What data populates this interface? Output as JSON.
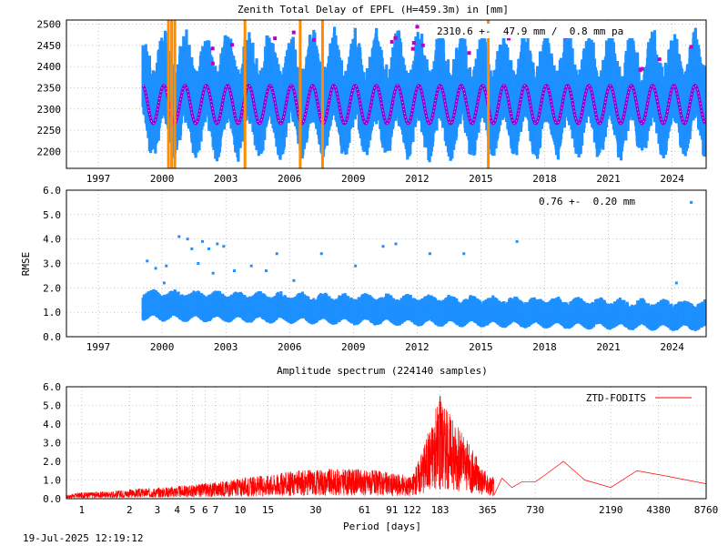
{
  "footer": {
    "timestamp": "19-Jul-2025 12:19:12"
  },
  "colors": {
    "ztd": "#1e90ff",
    "model": "#9400d3",
    "model_dots": "#c000c0",
    "events": "#ff8c00",
    "spectrum": "#ff0000",
    "grid": "#a0a0a0"
  },
  "chart_data": [
    {
      "type": "scatter",
      "title": "Zenith Total Delay of EPFL (H=459.3m) in [mm]",
      "annotation": "2310.6 +-  47.9 mm /  0.8 mm pa",
      "xlabel": "",
      "ylabel": "",
      "xlim": [
        1995.5,
        2025.6
      ],
      "ylim": [
        2160,
        2510
      ],
      "x_ticks": [
        "1997",
        "2000",
        "2003",
        "2006",
        "2009",
        "2012",
        "2015",
        "2018",
        "2021",
        "2024"
      ],
      "y_ticks": [
        "2200",
        "2250",
        "2300",
        "2350",
        "2400",
        "2450",
        "2500"
      ],
      "grid": true,
      "data_start": 1999.1,
      "data_end": 2025.55,
      "series": [
        {
          "role": "observations",
          "mean": 2310.6,
          "seasonal_amplitude": 45,
          "scatter_amplitude": 110
        },
        {
          "role": "fitted-model",
          "mean": 2310.6,
          "seasonal_amplitude": 45
        }
      ],
      "events": [
        2000.3,
        2000.45,
        2000.6,
        2003.9,
        2006.5,
        2007.55,
        2015.35
      ]
    },
    {
      "type": "scatter",
      "title": "",
      "annotation": "0.76 +-  0.20 mm",
      "xlabel": "",
      "ylabel": "RMSE",
      "xlim": [
        1995.5,
        2025.6
      ],
      "ylim": [
        0,
        6
      ],
      "x_ticks": [
        "1997",
        "2000",
        "2003",
        "2006",
        "2009",
        "2012",
        "2015",
        "2018",
        "2021",
        "2024"
      ],
      "y_ticks": [
        "0.0",
        "1.0",
        "2.0",
        "3.0",
        "4.0",
        "5.0",
        "6.0"
      ],
      "grid": true,
      "rmse_start": 1.15,
      "rmse_end": 0.72,
      "outliers": [
        [
          1999.3,
          3.1
        ],
        [
          1999.7,
          2.8
        ],
        [
          2000.1,
          2.2
        ],
        [
          2000.2,
          2.9
        ],
        [
          2000.8,
          4.1
        ],
        [
          2001.2,
          4.0
        ],
        [
          2001.4,
          3.6
        ],
        [
          2001.7,
          3.0
        ],
        [
          2001.9,
          3.9
        ],
        [
          2002.2,
          3.6
        ],
        [
          2002.4,
          2.6
        ],
        [
          2002.6,
          3.8
        ],
        [
          2002.9,
          3.7
        ],
        [
          2003.4,
          2.7
        ],
        [
          2004.2,
          2.9
        ],
        [
          2004.9,
          2.7
        ],
        [
          2005.4,
          3.4
        ],
        [
          2006.2,
          2.3
        ],
        [
          2007.5,
          3.4
        ],
        [
          2009.1,
          2.9
        ],
        [
          2010.4,
          3.7
        ],
        [
          2011.0,
          3.8
        ],
        [
          2012.6,
          3.4
        ],
        [
          2014.2,
          3.4
        ],
        [
          2016.7,
          3.9
        ],
        [
          2024.9,
          5.5
        ],
        [
          2024.2,
          2.2
        ]
      ]
    },
    {
      "type": "line",
      "title": "Amplitude spectrum (224140 samples)",
      "xlabel": "Period [days]",
      "ylabel": "",
      "x_scale": "log",
      "xlim": [
        0.8,
        8760
      ],
      "ylim": [
        0,
        6
      ],
      "x_ticks": [
        "1",
        "2",
        "3",
        "4",
        "5",
        "6",
        "7",
        "10",
        "15",
        "30",
        "61",
        "91",
        "122",
        "183",
        "365",
        "730",
        "2190",
        "4380",
        "8760"
      ],
      "y_ticks": [
        "0.0",
        "1.0",
        "2.0",
        "3.0",
        "4.0",
        "5.0",
        "6.0"
      ],
      "grid": true,
      "legend": "top-right",
      "series": [
        {
          "name": "ZTD-FODITS",
          "points": [
            [
              0.8,
              0.2
            ],
            [
              1,
              0.35
            ],
            [
              1.5,
              0.4
            ],
            [
              2,
              0.5
            ],
            [
              3,
              0.6
            ],
            [
              5,
              0.75
            ],
            [
              7,
              0.9
            ],
            [
              10,
              1.1
            ],
            [
              15,
              1.3
            ],
            [
              20,
              1.45
            ],
            [
              30,
              1.6
            ],
            [
              61,
              1.6
            ],
            [
              91,
              1.4
            ],
            [
              122,
              1.2
            ],
            [
              183,
              5.5
            ],
            [
              365,
              1.3
            ],
            [
              730,
              0.9
            ],
            [
              1100,
              2.0
            ],
            [
              2190,
              0.6
            ],
            [
              3200,
              1.5
            ],
            [
              8760,
              0.8
            ]
          ]
        }
      ]
    }
  ]
}
